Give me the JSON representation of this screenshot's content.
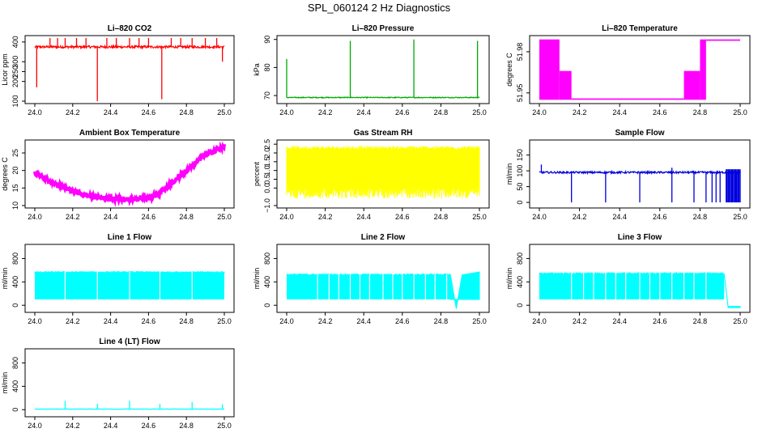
{
  "title": "SPL_060124  2 Hz Diagnostics",
  "chart_data": [
    {
      "id": "p1",
      "type": "line",
      "title": "Li–820 CO2",
      "ylabel": "Licor ppm",
      "color": "#ff0000",
      "xlim": [
        24.0,
        25.0
      ],
      "ylim": [
        100,
        420
      ],
      "xticks": [
        "24.0",
        "24.2",
        "24.4",
        "24.6",
        "24.8",
        "25.0"
      ],
      "yticks": [
        {
          "v": 100,
          "label": "100"
        },
        {
          "v": 200,
          "label": "200"
        },
        {
          "v": 250,
          "label": "250"
        },
        {
          "v": 300,
          "label": "300"
        },
        {
          "v": 400,
          "label": "400"
        }
      ],
      "profile": {
        "base": 375,
        "noise": 6,
        "spikes": [
          [
            24.01,
            170
          ],
          [
            24.08,
            420
          ],
          [
            24.12,
            420
          ],
          [
            24.16,
            420
          ],
          [
            24.22,
            420
          ],
          [
            24.27,
            420
          ],
          [
            24.33,
            100
          ],
          [
            24.38,
            420
          ],
          [
            24.43,
            420
          ],
          [
            24.5,
            420
          ],
          [
            24.55,
            420
          ],
          [
            24.6,
            420
          ],
          [
            24.67,
            110
          ],
          [
            24.72,
            420
          ],
          [
            24.77,
            420
          ],
          [
            24.83,
            420
          ],
          [
            24.9,
            420
          ],
          [
            24.96,
            420
          ],
          [
            24.99,
            300
          ]
        ]
      }
    },
    {
      "id": "p2",
      "type": "line",
      "title": "Li–820 Pressure",
      "ylabel": "kPa",
      "color": "#00aa00",
      "xlim": [
        24.0,
        25.0
      ],
      "ylim": [
        68,
        90.5
      ],
      "xticks": [
        "24.0",
        "24.2",
        "24.4",
        "24.6",
        "24.8",
        "25.0"
      ],
      "yticks": [
        {
          "v": 70,
          "label": "70"
        },
        {
          "v": 80,
          "label": "80"
        },
        {
          "v": 90,
          "label": "90"
        }
      ],
      "profile": {
        "base": 69.3,
        "noise": 0.15,
        "spikes": [
          [
            24.0,
            83
          ],
          [
            24.33,
            89.5
          ],
          [
            24.66,
            90
          ],
          [
            24.99,
            89.5
          ]
        ]
      }
    },
    {
      "id": "p3",
      "type": "band",
      "title": "Li–820 Temperature",
      "ylabel": "degrees C",
      "color": "#ff00ff",
      "xlim": [
        24.0,
        25.0
      ],
      "ylim": [
        51.944,
        51.99
      ],
      "xticks": [
        "24.0",
        "24.2",
        "24.4",
        "24.6",
        "24.8",
        "25.0"
      ],
      "yticks": [
        {
          "v": 51.95,
          "label": "51.95"
        },
        {
          "v": 51.98,
          "label": "51.98"
        }
      ],
      "segments": [
        [
          24.0,
          24.1,
          51.945,
          51.989
        ],
        [
          24.1,
          24.16,
          51.945,
          51.966
        ],
        [
          24.16,
          24.72,
          51.945,
          51.946
        ],
        [
          24.72,
          24.8,
          51.945,
          51.966
        ],
        [
          24.8,
          24.83,
          51.945,
          51.989
        ],
        [
          24.83,
          25.0,
          51.988,
          51.989
        ]
      ]
    },
    {
      "id": "p4",
      "type": "line",
      "title": "Ambient Box Temperature",
      "ylabel": "degrees C",
      "color": "#ff00ff",
      "xlim": [
        24.0,
        25.0
      ],
      "ylim": [
        10,
        28
      ],
      "xticks": [
        "24.0",
        "24.2",
        "24.4",
        "24.6",
        "24.8",
        "25.0"
      ],
      "yticks": [
        {
          "v": 10,
          "label": "10"
        },
        {
          "v": 15,
          "label": "15"
        },
        {
          "v": 20,
          "label": "20"
        },
        {
          "v": 25,
          "label": "25"
        }
      ],
      "curve": [
        [
          24.0,
          19.2
        ],
        [
          24.1,
          16.5
        ],
        [
          24.2,
          14.0
        ],
        [
          24.3,
          12.5
        ],
        [
          24.4,
          12.0
        ],
        [
          24.5,
          11.8
        ],
        [
          24.6,
          12.0
        ],
        [
          24.66,
          13.5
        ],
        [
          24.7,
          15.5
        ],
        [
          24.8,
          20.0
        ],
        [
          24.9,
          24.5
        ],
        [
          25.0,
          27.0
        ]
      ],
      "profile": {
        "noise": 0.6
      }
    },
    {
      "id": "p5",
      "type": "noise",
      "title": "Gas Stream RH",
      "ylabel": "percent",
      "color": "#ffff00",
      "xlim": [
        24.0,
        25.0
      ],
      "ylim": [
        -1.0,
        2.6
      ],
      "xticks": [
        "24.0",
        "24.2",
        "24.4",
        "24.6",
        "24.8",
        "25.0"
      ],
      "yticks": [
        {
          "v": -1.0,
          "label": "−1.0"
        },
        {
          "v": 0.0,
          "label": "0.0"
        },
        {
          "v": 0.5,
          "label": "0.5"
        },
        {
          "v": 1.0,
          "label": "1.0"
        },
        {
          "v": 1.5,
          "label": "1.5"
        },
        {
          "v": 2.0,
          "label": "2.0"
        },
        {
          "v": 2.5,
          "label": "2.5"
        }
      ],
      "band": [
        -0.6,
        2.4
      ],
      "core": [
        0.0,
        2.2
      ]
    },
    {
      "id": "p6",
      "type": "line",
      "title": "Sample Flow",
      "ylabel": "ml/min",
      "color": "#0000dd",
      "xlim": [
        24.0,
        25.0
      ],
      "ylim": [
        -10,
        190
      ],
      "xticks": [
        "24.0",
        "24.2",
        "24.4",
        "24.6",
        "24.8",
        "25.0"
      ],
      "yticks": [
        {
          "v": 0,
          "label": "0"
        },
        {
          "v": 50,
          "label": "50"
        },
        {
          "v": 100,
          "label": "100"
        },
        {
          "v": 150,
          "label": "150"
        }
      ],
      "profile": {
        "base": 95,
        "noise": 3,
        "spikes": [
          [
            24.01,
            120
          ],
          [
            24.16,
            0
          ],
          [
            24.33,
            0
          ],
          [
            24.5,
            0
          ],
          [
            24.66,
            0
          ],
          [
            24.66,
            110
          ],
          [
            24.77,
            0
          ],
          [
            24.83,
            0
          ],
          [
            24.86,
            0
          ],
          [
            24.88,
            0
          ],
          [
            24.9,
            0
          ],
          [
            24.93,
            0
          ],
          [
            24.96,
            0
          ],
          [
            24.98,
            0
          ]
        ],
        "block": [
          24.93,
          25.0,
          0,
          105
        ]
      }
    },
    {
      "id": "p7",
      "type": "flow",
      "title": "Line 1 Flow",
      "ylabel": "ml/min",
      "color": "#00ffff",
      "xlim": [
        24.0,
        25.0
      ],
      "ylim": [
        -80,
        1000
      ],
      "xticks": [
        "24.0",
        "24.2",
        "24.4",
        "24.6",
        "24.8",
        "25.0"
      ],
      "yticks": [
        {
          "v": 0,
          "label": "0"
        },
        {
          "v": 400,
          "label": "400"
        },
        {
          "v": 800,
          "label": "800"
        }
      ],
      "hi": 560,
      "lo": 100,
      "gaps": [
        24.16,
        24.33,
        24.5,
        24.66,
        24.83
      ],
      "tail": null
    },
    {
      "id": "p8",
      "type": "flow",
      "title": "Line 2 Flow",
      "ylabel": "ml/min",
      "color": "#00ffff",
      "xlim": [
        24.0,
        25.0
      ],
      "ylim": [
        -80,
        1000
      ],
      "xticks": [
        "24.0",
        "24.2",
        "24.4",
        "24.6",
        "24.8",
        "25.0"
      ],
      "yticks": [
        {
          "v": 0,
          "label": "0"
        },
        {
          "v": 400,
          "label": "400"
        },
        {
          "v": 800,
          "label": "800"
        }
      ],
      "hi": 520,
      "lo": 100,
      "gaps": [
        24.16,
        24.22,
        24.27,
        24.33,
        24.38,
        24.43,
        24.5,
        24.55,
        24.6,
        24.66,
        24.72,
        24.77,
        24.83
      ],
      "tail": {
        "start": 24.85,
        "dip": -60,
        "end_hi": 570
      }
    },
    {
      "id": "p9",
      "type": "flow",
      "title": "Line 3 Flow",
      "ylabel": "ml/min",
      "color": "#00ffff",
      "xlim": [
        24.0,
        25.0
      ],
      "ylim": [
        -80,
        1000
      ],
      "xticks": [
        "24.0",
        "24.2",
        "24.4",
        "24.6",
        "24.8",
        "25.0"
      ],
      "yticks": [
        {
          "v": 0,
          "label": "0"
        },
        {
          "v": 400,
          "label": "400"
        },
        {
          "v": 800,
          "label": "800"
        }
      ],
      "hi": 540,
      "lo": 100,
      "gaps": [
        24.16,
        24.22,
        24.27,
        24.33,
        24.38,
        24.43,
        24.5,
        24.55,
        24.6,
        24.66,
        24.72,
        24.77,
        24.83
      ],
      "tail": {
        "start": 24.92,
        "dip": -40,
        "flat": -20
      }
    },
    {
      "id": "p10",
      "type": "line",
      "title": "Line 4 (LT) Flow",
      "ylabel": "ml/min",
      "color": "#00ffff",
      "xlim": [
        24.0,
        25.0
      ],
      "ylim": [
        -80,
        1000
      ],
      "xticks": [
        "24.0",
        "24.2",
        "24.4",
        "24.6",
        "24.8",
        "25.0"
      ],
      "yticks": [
        {
          "v": 0,
          "label": "0"
        },
        {
          "v": 400,
          "label": "400"
        },
        {
          "v": 800,
          "label": "800"
        }
      ],
      "profile": {
        "base": 10,
        "noise": 2,
        "spikes": [
          [
            24.16,
            150
          ],
          [
            24.33,
            100
          ],
          [
            24.5,
            150
          ],
          [
            24.66,
            100
          ],
          [
            24.83,
            130
          ],
          [
            24.99,
            90
          ]
        ]
      }
    }
  ]
}
